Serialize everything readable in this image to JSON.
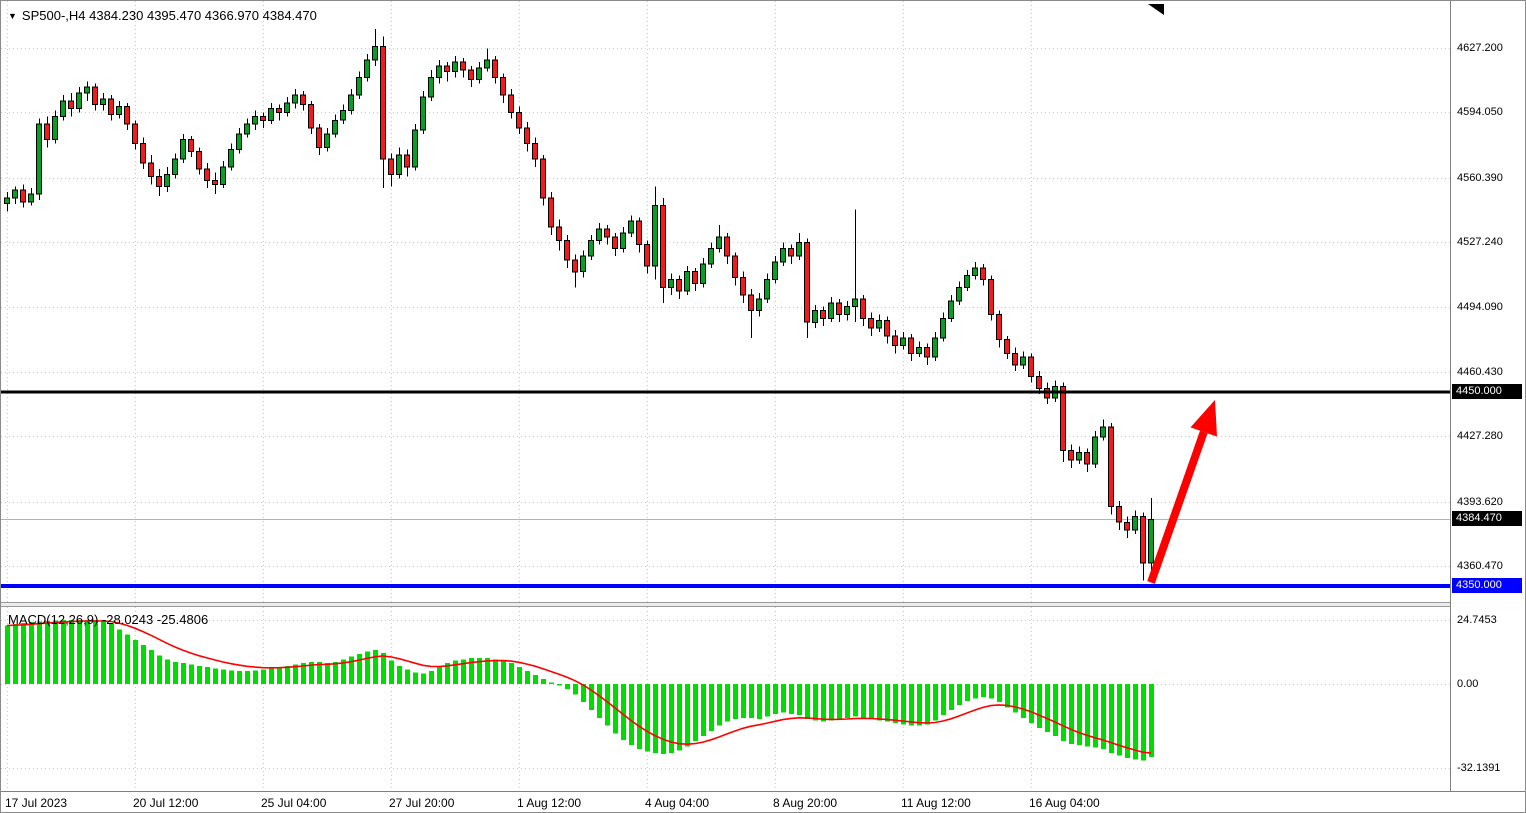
{
  "window": {
    "title_text": "SP500-,H4 4384.230 4395.470 4366.970 4384.470",
    "symbol": "SP500-",
    "timeframe": "H4",
    "ohlc": {
      "open": "4384.230",
      "high": "4395.470",
      "low": "4366.970",
      "close": "4384.470"
    }
  },
  "macd": {
    "title_text": "MACD(12,26,9) -28.0243 -25.4806",
    "macd_value": "-28.0243",
    "signal_value": "-25.4806"
  },
  "colors": {
    "bull": "#00A220",
    "bear": "#F81818",
    "candle_border": "#000000",
    "wick": "#000000",
    "histogram": "#00DB00",
    "signal_line": "#FF0000",
    "grid": "#c9c9c9",
    "axis_text": "#000000",
    "resistance": "#000000",
    "support": "#0000FF",
    "current_price": "#9bbdbd",
    "arrow": "#FF0000"
  },
  "overlays": {
    "hlines": [
      {
        "name": "resistance-line",
        "price": 4450.0,
        "axis_label": "4450.000",
        "color": "#000000",
        "width": 3,
        "box_bg": "#000000"
      },
      {
        "name": "current-price-line",
        "price": 4384.47,
        "axis_label": "4384.470",
        "color": "#9bbdbd",
        "width": 1,
        "box_bg": "#000000"
      },
      {
        "name": "support-line",
        "price": 4350.0,
        "axis_label": "4350.000",
        "color": "#0000FF",
        "width": 4,
        "box_bg": "#0000FF"
      }
    ],
    "arrow": {
      "from_index": 143,
      "from_price": 4352,
      "to_index": 151,
      "to_price": 4446,
      "color": "#FF0000"
    }
  },
  "chart_data": [
    {
      "type": "candlestick",
      "title": "SP500- H4 price panel",
      "ylim": [
        4342,
        4651
      ],
      "y_ticks": [
        4627.2,
        4594.05,
        4560.39,
        4527.24,
        4494.09,
        4460.43,
        4427.28,
        4393.62,
        4360.47
      ],
      "x_labels": [
        {
          "index": 0,
          "text": "17 Jul 2023"
        },
        {
          "index": 16,
          "text": "20 Jul 12:00"
        },
        {
          "index": 32,
          "text": "25 Jul 04:00"
        },
        {
          "index": 48,
          "text": "27 Jul 20:00"
        },
        {
          "index": 64,
          "text": "1 Aug 12:00"
        },
        {
          "index": 80,
          "text": "4 Aug 04:00"
        },
        {
          "index": 96,
          "text": "8 Aug 20:00"
        },
        {
          "index": 112,
          "text": "11 Aug 12:00"
        },
        {
          "index": 128,
          "text": "16 Aug 04:00"
        }
      ],
      "last_price": 4384.47,
      "ohlc": [
        [
          4547,
          4553,
          4543,
          4550
        ],
        [
          4550,
          4556,
          4547,
          4554
        ],
        [
          4554,
          4557,
          4545,
          4548
        ],
        [
          4548,
          4555,
          4546,
          4552
        ],
        [
          4552,
          4591,
          4549,
          4588
        ],
        [
          4588,
          4592,
          4576,
          4580
        ],
        [
          4580,
          4595,
          4578,
          4592
        ],
        [
          4592,
          4603,
          4590,
          4600
        ],
        [
          4600,
          4604,
          4592,
          4596
        ],
        [
          4596,
          4607,
          4594,
          4604
        ],
        [
          4604,
          4610,
          4600,
          4607
        ],
        [
          4607,
          4609,
          4595,
          4598
        ],
        [
          4598,
          4604,
          4595,
          4601
        ],
        [
          4601,
          4603,
          4590,
          4593
        ],
        [
          4593,
          4600,
          4591,
          4597
        ],
        [
          4597,
          4599,
          4585,
          4588
        ],
        [
          4588,
          4590,
          4575,
          4578
        ],
        [
          4578,
          4581,
          4565,
          4568
        ],
        [
          4568,
          4572,
          4557,
          4561
        ],
        [
          4561,
          4565,
          4551,
          4556
        ],
        [
          4556,
          4566,
          4553,
          4562
        ],
        [
          4562,
          4573,
          4560,
          4570
        ],
        [
          4570,
          4583,
          4568,
          4580
        ],
        [
          4580,
          4582,
          4571,
          4574
        ],
        [
          4574,
          4576,
          4562,
          4565
        ],
        [
          4565,
          4568,
          4555,
          4559
        ],
        [
          4559,
          4563,
          4552,
          4557
        ],
        [
          4557,
          4569,
          4555,
          4566
        ],
        [
          4566,
          4578,
          4564,
          4575
        ],
        [
          4575,
          4586,
          4573,
          4583
        ],
        [
          4583,
          4591,
          4581,
          4588
        ],
        [
          4588,
          4595,
          4585,
          4592
        ],
        [
          4592,
          4594,
          4586,
          4590
        ],
        [
          4590,
          4599,
          4588,
          4596
        ],
        [
          4596,
          4598,
          4590,
          4594
        ],
        [
          4594,
          4602,
          4592,
          4599
        ],
        [
          4599,
          4606,
          4596,
          4603
        ],
        [
          4603,
          4605,
          4595,
          4598
        ],
        [
          4598,
          4600,
          4583,
          4586
        ],
        [
          4586,
          4588,
          4572,
          4576
        ],
        [
          4576,
          4586,
          4574,
          4583
        ],
        [
          4583,
          4593,
          4581,
          4590
        ],
        [
          4590,
          4598,
          4588,
          4595
        ],
        [
          4595,
          4606,
          4593,
          4603
        ],
        [
          4603,
          4615,
          4601,
          4612
        ],
        [
          4612,
          4624,
          4610,
          4621
        ],
        [
          4621,
          4637,
          4618,
          4628
        ],
        [
          4628,
          4633,
          4555,
          4570
        ],
        [
          4570,
          4573,
          4556,
          4562
        ],
        [
          4562,
          4576,
          4560,
          4572
        ],
        [
          4572,
          4575,
          4561,
          4566
        ],
        [
          4566,
          4588,
          4564,
          4585
        ],
        [
          4585,
          4605,
          4583,
          4602
        ],
        [
          4602,
          4616,
          4600,
          4612
        ],
        [
          4612,
          4621,
          4609,
          4618
        ],
        [
          4618,
          4620,
          4610,
          4615
        ],
        [
          4615,
          4623,
          4612,
          4620
        ],
        [
          4620,
          4622,
          4612,
          4616
        ],
        [
          4616,
          4618,
          4607,
          4611
        ],
        [
          4611,
          4620,
          4609,
          4617
        ],
        [
          4617,
          4627,
          4615,
          4621
        ],
        [
          4621,
          4623,
          4609,
          4612
        ],
        [
          4612,
          4614,
          4599,
          4603
        ],
        [
          4603,
          4606,
          4591,
          4594
        ],
        [
          4594,
          4597,
          4583,
          4586
        ],
        [
          4586,
          4589,
          4574,
          4578
        ],
        [
          4578,
          4581,
          4566,
          4570
        ],
        [
          4570,
          4572,
          4546,
          4550
        ],
        [
          4550,
          4553,
          4531,
          4535
        ],
        [
          4535,
          4539,
          4523,
          4528
        ],
        [
          4528,
          4531,
          4514,
          4518
        ],
        [
          4518,
          4521,
          4504,
          4512
        ],
        [
          4512,
          4523,
          4509,
          4520
        ],
        [
          4520,
          4531,
          4518,
          4528
        ],
        [
          4528,
          4537,
          4526,
          4534
        ],
        [
          4534,
          4536,
          4526,
          4530
        ],
        [
          4530,
          4532,
          4520,
          4524
        ],
        [
          4524,
          4535,
          4522,
          4532
        ],
        [
          4532,
          4541,
          4530,
          4538
        ],
        [
          4538,
          4540,
          4522,
          4526
        ],
        [
          4526,
          4528,
          4511,
          4515
        ],
        [
          4515,
          4556,
          4508,
          4546
        ],
        [
          4546,
          4550,
          4496,
          4504
        ],
        [
          4504,
          4511,
          4500,
          4508
        ],
        [
          4508,
          4510,
          4498,
          4502
        ],
        [
          4502,
          4515,
          4500,
          4512
        ],
        [
          4512,
          4514,
          4502,
          4506
        ],
        [
          4506,
          4519,
          4504,
          4516
        ],
        [
          4516,
          4527,
          4514,
          4524
        ],
        [
          4524,
          4536,
          4522,
          4530
        ],
        [
          4530,
          4532,
          4516,
          4520
        ],
        [
          4520,
          4522,
          4505,
          4509
        ],
        [
          4509,
          4512,
          4496,
          4500
        ],
        [
          4500,
          4503,
          4478,
          4492
        ],
        [
          4492,
          4501,
          4489,
          4498
        ],
        [
          4498,
          4511,
          4496,
          4508
        ],
        [
          4508,
          4520,
          4506,
          4517
        ],
        [
          4517,
          4527,
          4515,
          4524
        ],
        [
          4524,
          4526,
          4516,
          4520
        ],
        [
          4520,
          4532,
          4518,
          4527
        ],
        [
          4527,
          4529,
          4478,
          4486
        ],
        [
          4486,
          4495,
          4483,
          4492
        ],
        [
          4492,
          4494,
          4484,
          4488
        ],
        [
          4488,
          4499,
          4486,
          4496
        ],
        [
          4496,
          4498,
          4486,
          4490
        ],
        [
          4490,
          4497,
          4487,
          4494
        ],
        [
          4494,
          4544,
          4486,
          4498
        ],
        [
          4498,
          4500,
          4484,
          4488
        ],
        [
          4488,
          4491,
          4479,
          4483
        ],
        [
          4483,
          4490,
          4481,
          4487
        ],
        [
          4487,
          4489,
          4475,
          4479
        ],
        [
          4479,
          4482,
          4470,
          4474
        ],
        [
          4474,
          4481,
          4472,
          4478
        ],
        [
          4478,
          4480,
          4466,
          4470
        ],
        [
          4470,
          4476,
          4468,
          4473
        ],
        [
          4473,
          4475,
          4464,
          4468
        ],
        [
          4468,
          4481,
          4466,
          4478
        ],
        [
          4478,
          4491,
          4476,
          4488
        ],
        [
          4488,
          4500,
          4486,
          4497
        ],
        [
          4497,
          4507,
          4495,
          4504
        ],
        [
          4504,
          4513,
          4502,
          4510
        ],
        [
          4510,
          4517,
          4508,
          4514
        ],
        [
          4514,
          4516,
          4505,
          4508
        ],
        [
          4508,
          4510,
          4487,
          4490
        ],
        [
          4490,
          4492,
          4473,
          4477
        ],
        [
          4477,
          4479,
          4467,
          4470
        ],
        [
          4470,
          4473,
          4461,
          4464
        ],
        [
          4464,
          4471,
          4462,
          4468
        ],
        [
          4468,
          4470,
          4455,
          4458
        ],
        [
          4458,
          4461,
          4449,
          4452
        ],
        [
          4452,
          4455,
          4444,
          4447
        ],
        [
          4447,
          4456,
          4445,
          4453
        ],
        [
          4453,
          4455,
          4414,
          4420
        ],
        [
          4420,
          4423,
          4411,
          4415
        ],
        [
          4415,
          4422,
          4413,
          4419
        ],
        [
          4419,
          4421,
          4409,
          4413
        ],
        [
          4413,
          4430,
          4411,
          4427
        ],
        [
          4427,
          4436,
          4425,
          4432
        ],
        [
          4432,
          4434,
          4387,
          4391
        ],
        [
          4391,
          4394,
          4379,
          4383
        ],
        [
          4383,
          4386,
          4375,
          4379
        ],
        [
          4379,
          4389,
          4377,
          4386
        ],
        [
          4386,
          4388,
          4353,
          4362
        ],
        [
          4362,
          4395.5,
          4355,
          4384.5
        ]
      ]
    },
    {
      "type": "bar",
      "title": "MACD(12,26,9)",
      "signal_period": 9,
      "y_ticks": [
        {
          "value": 24.7453,
          "label": "24.7453"
        },
        {
          "value": 0,
          "label": "0.00"
        },
        {
          "value": -32.1391,
          "label": "-32.1391"
        }
      ],
      "last_values": {
        "macd": -28.0243,
        "signal": -25.4806
      },
      "values": [
        22.5,
        23,
        23.5,
        23.8,
        24,
        24.3,
        24.5,
        24.6,
        24.7,
        24.7,
        24.6,
        24.4,
        24,
        23.4,
        21,
        19,
        17,
        15,
        13,
        11,
        9.5,
        8.5,
        8,
        7.5,
        7,
        6.5,
        6,
        5.5,
        5.2,
        5,
        5,
        5.2,
        5.5,
        6,
        6.5,
        7,
        7.5,
        8,
        8.5,
        8.5,
        8,
        8.5,
        9.5,
        10.5,
        11.5,
        12.5,
        13,
        12,
        9,
        7,
        5.5,
        4.5,
        4,
        5,
        6.5,
        8,
        9,
        9.5,
        10,
        10,
        10,
        9.5,
        9,
        8,
        6.5,
        5,
        3.5,
        2,
        0.5,
        -0.5,
        -2,
        -4,
        -7,
        -10,
        -13,
        -16,
        -19,
        -21.5,
        -23.5,
        -25,
        -26,
        -26.5,
        -27,
        -26.5,
        -25.5,
        -24,
        -22,
        -20,
        -18,
        -16,
        -14.5,
        -13.5,
        -13,
        -13,
        -13.5,
        -12.5,
        -11.5,
        -11,
        -11.5,
        -12,
        -13.5,
        -14,
        -14.5,
        -14,
        -13.5,
        -13,
        -12.5,
        -13,
        -13.5,
        -14,
        -14.5,
        -15,
        -15.5,
        -16,
        -16,
        -15.5,
        -14,
        -12,
        -10,
        -8,
        -6.5,
        -5.5,
        -5,
        -5.5,
        -7,
        -9,
        -11,
        -13,
        -15,
        -17,
        -18.5,
        -20,
        -22,
        -23,
        -23.5,
        -24,
        -24.5,
        -25,
        -26.5,
        -27.5,
        -28.5,
        -29,
        -29.5,
        -28.0243
      ]
    }
  ]
}
